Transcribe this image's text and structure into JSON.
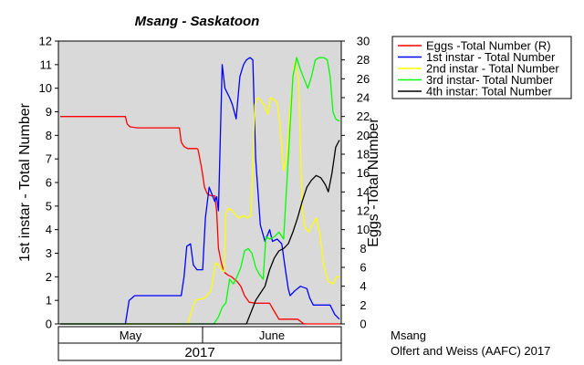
{
  "chart_data": {
    "type": "line",
    "title": "Msang - Saskatoon",
    "ylabel_left": "1st instar - Total Number",
    "ylabel_right": "Eggs -Total Number",
    "ylim_left": [
      0,
      12
    ],
    "ylim_right": [
      0,
      30
    ],
    "left_ticks": [
      "0",
      "1",
      "2",
      "3",
      "4",
      "5",
      "6",
      "7",
      "8",
      "9",
      "10",
      "11",
      "12"
    ],
    "right_ticks": [
      "0",
      "2",
      "4",
      "6",
      "8",
      "10",
      "12",
      "14",
      "16",
      "18",
      "20",
      "22",
      "24",
      "26",
      "28",
      "30"
    ],
    "x_axis": {
      "months": [
        "May",
        "June"
      ],
      "year": "2017"
    },
    "grid": false,
    "legend_position": "top-right-outside",
    "background_color": "#d9d9d9",
    "series": [
      {
        "name": "Eggs -Total Number (R)",
        "axis": "right",
        "color": "#ff0000",
        "points": [
          [
            0,
            22
          ],
          [
            70,
            22
          ],
          [
            72,
            21.2
          ],
          [
            75,
            20.9
          ],
          [
            83,
            20.8
          ],
          [
            128,
            20.8
          ],
          [
            130,
            19.3
          ],
          [
            133,
            18.8
          ],
          [
            137,
            18.6
          ],
          [
            147,
            18.6
          ],
          [
            148,
            18.5
          ],
          [
            152,
            16.5
          ],
          [
            155,
            14.5
          ],
          [
            158,
            13.8
          ],
          [
            162,
            13.6
          ],
          [
            166,
            13.6
          ],
          [
            168,
            12
          ],
          [
            170,
            8
          ],
          [
            173,
            6.5
          ],
          [
            176,
            5.5
          ],
          [
            180,
            5.2
          ],
          [
            184,
            5
          ],
          [
            190,
            4.5
          ],
          [
            194,
            4
          ],
          [
            198,
            3
          ],
          [
            203,
            2.3
          ],
          [
            210,
            2.2
          ],
          [
            225,
            2.2
          ],
          [
            229,
            1.5
          ],
          [
            235,
            0.5
          ],
          [
            255,
            0.5
          ],
          [
            262,
            0
          ],
          [
            300,
            0
          ]
        ]
      },
      {
        "name": "1st instar - Total Number",
        "axis": "left",
        "color": "#0000ff",
        "points": [
          [
            0,
            0
          ],
          [
            70,
            0
          ],
          [
            74,
            1
          ],
          [
            80,
            1.2
          ],
          [
            130,
            1.2
          ],
          [
            133,
            2
          ],
          [
            136,
            3.3
          ],
          [
            140,
            3.4
          ],
          [
            143,
            2.5
          ],
          [
            147,
            2.3
          ],
          [
            153,
            2.3
          ],
          [
            156,
            4.5
          ],
          [
            160,
            5.8
          ],
          [
            163,
            5.5
          ],
          [
            166,
            5.2
          ],
          [
            168,
            5.4
          ],
          [
            170,
            4.8
          ],
          [
            174,
            11
          ],
          [
            177,
            10
          ],
          [
            182,
            9.6
          ],
          [
            185,
            9.3
          ],
          [
            189,
            8.7
          ],
          [
            193,
            10.5
          ],
          [
            197,
            11
          ],
          [
            200,
            11.2
          ],
          [
            204,
            11.3
          ],
          [
            207,
            11.2
          ],
          [
            210,
            7
          ],
          [
            215,
            4.2
          ],
          [
            220,
            3.5
          ],
          [
            225,
            4
          ],
          [
            228,
            3.5
          ],
          [
            233,
            3.6
          ],
          [
            238,
            3.4
          ],
          [
            242,
            2.3
          ],
          [
            245,
            1.5
          ],
          [
            247,
            1.2
          ],
          [
            252,
            1.4
          ],
          [
            258,
            1.6
          ],
          [
            265,
            1.5
          ],
          [
            268,
            1.1
          ],
          [
            272,
            0.8
          ],
          [
            290,
            0.8
          ],
          [
            295,
            0.4
          ],
          [
            300,
            0.2
          ]
        ]
      },
      {
        "name": "2nd instar - Total Number",
        "axis": "left",
        "color": "#ffff00",
        "points": [
          [
            0,
            0
          ],
          [
            137,
            0
          ],
          [
            140,
            0.4
          ],
          [
            145,
            1
          ],
          [
            155,
            1.1
          ],
          [
            162,
            1.4
          ],
          [
            167,
            2.6
          ],
          [
            172,
            2.4
          ],
          [
            176,
            2.2
          ],
          [
            178,
            4.7
          ],
          [
            181,
            4.9
          ],
          [
            185,
            4.8
          ],
          [
            189,
            4.6
          ],
          [
            193,
            4.5
          ],
          [
            197,
            4.6
          ],
          [
            201,
            4.5
          ],
          [
            205,
            4.6
          ],
          [
            209,
            9.3
          ],
          [
            212,
            9.6
          ],
          [
            215,
            9.5
          ],
          [
            219,
            9.3
          ],
          [
            223,
            8.9
          ],
          [
            226,
            9.6
          ],
          [
            230,
            9.5
          ],
          [
            233,
            9.4
          ],
          [
            236,
            8.5
          ],
          [
            240,
            6.5
          ],
          [
            243,
            7
          ],
          [
            248,
            9.6
          ],
          [
            252,
            11.1
          ],
          [
            256,
            10.4
          ],
          [
            260,
            4.9
          ],
          [
            263,
            4.1
          ],
          [
            267,
            3.9
          ],
          [
            271,
            4.2
          ],
          [
            275,
            4.5
          ],
          [
            279,
            3.8
          ],
          [
            283,
            2.5
          ],
          [
            288,
            1.8
          ],
          [
            293,
            1.7
          ],
          [
            297,
            2
          ],
          [
            300,
            2
          ]
        ]
      },
      {
        "name": "3rd instar- Total Number",
        "axis": "left",
        "color": "#00ff00",
        "points": [
          [
            0,
            0
          ],
          [
            165,
            0
          ],
          [
            170,
            0.3
          ],
          [
            174,
            0.7
          ],
          [
            178,
            0.9
          ],
          [
            182,
            1.9
          ],
          [
            186,
            1.7
          ],
          [
            190,
            2
          ],
          [
            194,
            2.4
          ],
          [
            198,
            3.1
          ],
          [
            202,
            3.2
          ],
          [
            206,
            3
          ],
          [
            210,
            2.4
          ],
          [
            214,
            2.1
          ],
          [
            218,
            1.9
          ],
          [
            221,
            3.7
          ],
          [
            225,
            3.6
          ],
          [
            230,
            3.7
          ],
          [
            235,
            3.9
          ],
          [
            240,
            3.6
          ],
          [
            245,
            7
          ],
          [
            250,
            10.5
          ],
          [
            254,
            11.3
          ],
          [
            258,
            10.8
          ],
          [
            262,
            10.4
          ],
          [
            266,
            10
          ],
          [
            270,
            10.5
          ],
          [
            274,
            11.2
          ],
          [
            278,
            11.3
          ],
          [
            283,
            11.3
          ],
          [
            287,
            11.2
          ],
          [
            290,
            10.5
          ],
          [
            293,
            9
          ],
          [
            296,
            8.7
          ],
          [
            300,
            8.6
          ]
        ]
      },
      {
        "name": "4th instar: Total Number",
        "axis": "left",
        "color": "#000000",
        "points": [
          [
            0,
            0
          ],
          [
            200,
            0
          ],
          [
            205,
            0.5
          ],
          [
            210,
            1
          ],
          [
            215,
            1.3
          ],
          [
            220,
            1.6
          ],
          [
            225,
            2.3
          ],
          [
            230,
            2.8
          ],
          [
            235,
            3.1
          ],
          [
            240,
            3.2
          ],
          [
            245,
            3.4
          ],
          [
            250,
            3.9
          ],
          [
            255,
            4.5
          ],
          [
            260,
            5.2
          ],
          [
            265,
            5.8
          ],
          [
            270,
            6.1
          ],
          [
            275,
            6.3
          ],
          [
            280,
            6.2
          ],
          [
            285,
            5.9
          ],
          [
            288,
            5.6
          ],
          [
            292,
            6.4
          ],
          [
            296,
            7.5
          ],
          [
            300,
            7.8
          ]
        ]
      }
    ]
  },
  "footer": {
    "line1": "Msang",
    "line2": "Olfert and Weiss (AAFC) 2017"
  }
}
